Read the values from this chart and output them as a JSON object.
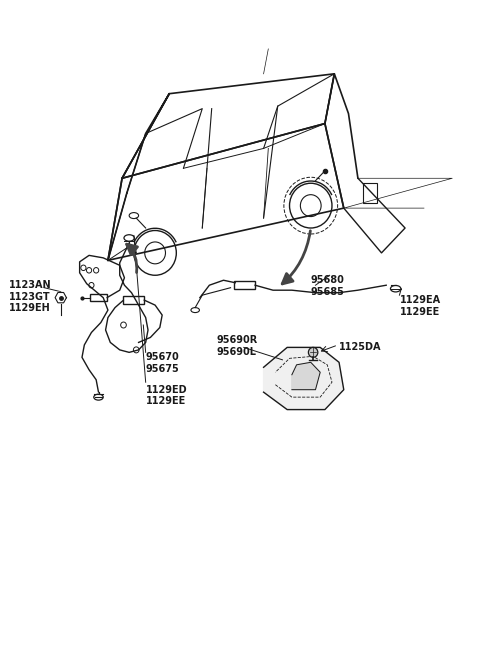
{
  "background_color": "#ffffff",
  "line_color": "#1a1a1a",
  "text_color": "#1a1a1a",
  "label_fontsize": 7.0,
  "arrow_color": "#444444",
  "labels": {
    "top_left": "1123AN\n1123GT\n1129EH",
    "right_mid": "95680\n95685",
    "right_sensor": "1129EA\n1129EE",
    "rear_harness": "95670\n95675",
    "rear_sensor": "1129ED\n1129EE",
    "bracket_label": "95690R\n95690L",
    "bracket_bolt": "1125DA"
  }
}
